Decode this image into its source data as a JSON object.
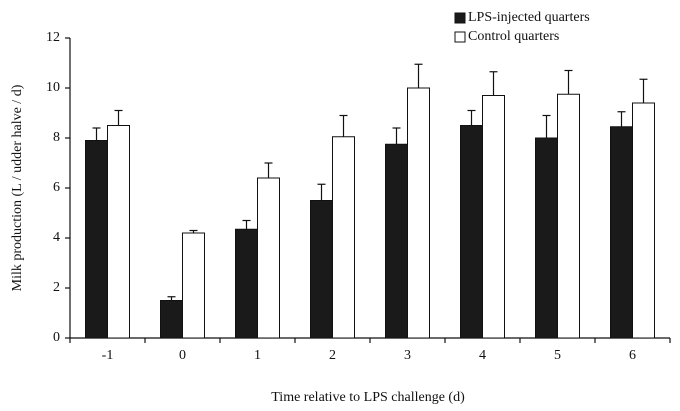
{
  "chart_data": {
    "type": "bar",
    "x_label": "Time relative to LPS challenge (d)",
    "y_label": "Milk production (L / udder halve / d)",
    "categories": [
      "-1",
      "0",
      "1",
      "2",
      "3",
      "4",
      "5",
      "6"
    ],
    "series": [
      {
        "name": "LPS-injected quarters",
        "color": "#1a1a1a",
        "values": [
          7.9,
          1.5,
          4.35,
          5.5,
          7.75,
          8.5,
          8.0,
          8.45
        ],
        "errors": [
          0.5,
          0.15,
          0.35,
          0.65,
          0.65,
          0.6,
          0.9,
          0.6
        ]
      },
      {
        "name": "Control quarters",
        "color": "#ffffff",
        "values": [
          8.5,
          4.2,
          6.4,
          8.05,
          10.0,
          9.7,
          9.75,
          9.4
        ],
        "errors": [
          0.6,
          0.1,
          0.6,
          0.85,
          0.95,
          0.95,
          0.95,
          0.95
        ]
      }
    ],
    "ylim": [
      0,
      12
    ],
    "yticks": [
      0,
      2,
      4,
      6,
      8,
      10,
      12
    ],
    "legend": "upper right"
  }
}
